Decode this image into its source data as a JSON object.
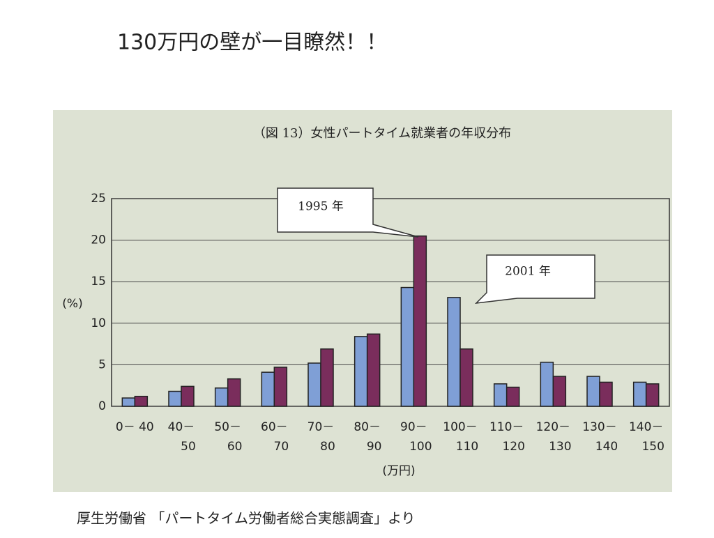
{
  "slide_title": "130万円の壁が一目瞭然！！",
  "footer": "厚生労働省 「パートタイム労働者総合実態調査」より",
  "chart_data": {
    "type": "bar",
    "title": "（図 13）女性パートタイム就業者の年収分布",
    "y_label": "(%)",
    "x_label": "(万円)",
    "categories": [
      [
        "0－ 40"
      ],
      [
        "40－",
        "50"
      ],
      [
        "50－",
        "60"
      ],
      [
        "60－",
        "70"
      ],
      [
        "70－",
        "80"
      ],
      [
        "80－",
        "90"
      ],
      [
        "90－",
        "100"
      ],
      [
        "100－",
        "110"
      ],
      [
        "110－",
        "120"
      ],
      [
        "120－",
        "130"
      ],
      [
        "130－",
        "140"
      ],
      [
        "140－",
        "150"
      ]
    ],
    "series": [
      {
        "name": "2001 年",
        "color": "#7f9fd6",
        "values": [
          1.0,
          1.8,
          2.2,
          4.1,
          5.2,
          8.4,
          14.3,
          13.1,
          2.7,
          5.3,
          3.6,
          2.9
        ]
      },
      {
        "name": "1995 年",
        "color": "#7a2d5c",
        "values": [
          1.2,
          2.4,
          3.3,
          4.7,
          6.9,
          8.7,
          20.5,
          6.9,
          2.3,
          3.6,
          2.9,
          2.7
        ]
      }
    ],
    "ylim": [
      0,
      25
    ],
    "yticks": [
      0,
      5,
      10,
      15,
      20,
      25
    ],
    "grid": true
  }
}
